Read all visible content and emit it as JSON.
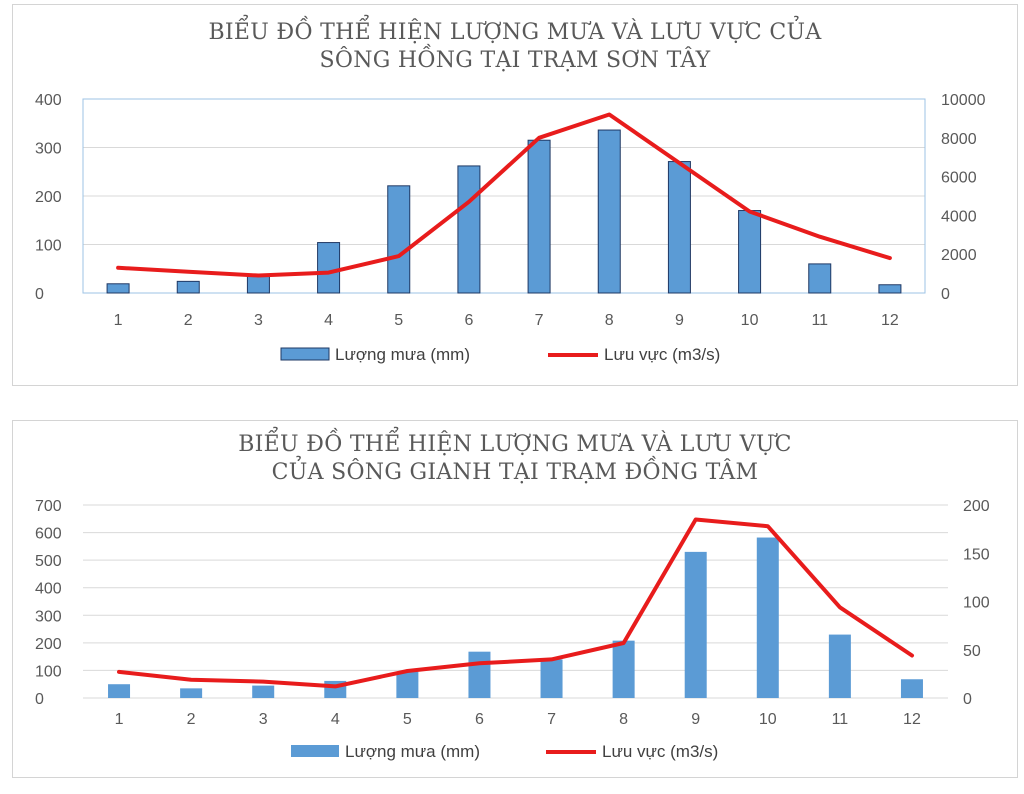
{
  "chart_data": [
    {
      "type": "bar+line",
      "title": [
        "BIỂU ĐỒ THỂ HIỆN LƯỢNG MƯA VÀ LƯU VỰC CỦA",
        "SÔNG HỒNG TẠI TRẠM SƠN TÂY"
      ],
      "categories": [
        "1",
        "2",
        "3",
        "4",
        "5",
        "6",
        "7",
        "8",
        "9",
        "10",
        "11",
        "12"
      ],
      "series": [
        {
          "name": "Lượng mưa (mm)",
          "kind": "bar",
          "axis": "left",
          "color": "#5b9bd5",
          "values": [
            19,
            24,
            37,
            104,
            221,
            262,
            315,
            336,
            271,
            170,
            60,
            17
          ]
        },
        {
          "name": "Lưu vực (m3/s)",
          "kind": "line",
          "axis": "right",
          "color": "#e81c1c",
          "values": [
            1300,
            1100,
            900,
            1050,
            1900,
            4700,
            8000,
            9200,
            6700,
            4200,
            2900,
            1800
          ]
        }
      ],
      "y_left": {
        "min": 0,
        "max": 400,
        "ticks": [
          0,
          100,
          200,
          300,
          400
        ]
      },
      "y_right": {
        "min": 0,
        "max": 10000,
        "ticks": [
          0,
          2000,
          4000,
          6000,
          8000,
          10000
        ]
      },
      "legend": [
        "Lượng mưa (mm)",
        "Lưu vực (m3/s)"
      ]
    },
    {
      "type": "bar+line",
      "title": [
        "BIỂU ĐỒ THỂ HIỆN LƯỢNG MƯA VÀ LƯU VỰC",
        "CỦA SÔNG GIANH TẠI TRẠM ĐỒNG TÂM"
      ],
      "categories": [
        "1",
        "2",
        "3",
        "4",
        "5",
        "6",
        "7",
        "8",
        "9",
        "10",
        "11",
        "12"
      ],
      "series": [
        {
          "name": "Lượng mưa (mm)",
          "kind": "bar",
          "axis": "left",
          "color": "#5b9bd5",
          "values": [
            50,
            35,
            45,
            62,
            95,
            168,
            140,
            208,
            530,
            582,
            230,
            68
          ]
        },
        {
          "name": "Lưu vực (m3/s)",
          "kind": "line",
          "axis": "right",
          "color": "#e81c1c",
          "values": [
            27,
            19,
            17,
            12,
            28,
            36,
            40,
            57,
            185,
            178,
            94,
            44
          ]
        }
      ],
      "y_left": {
        "min": 0,
        "max": 700,
        "ticks": [
          0,
          100,
          200,
          300,
          400,
          500,
          600,
          700
        ]
      },
      "y_right": {
        "min": 0,
        "max": 200,
        "ticks": [
          0,
          50,
          100,
          150,
          200
        ]
      },
      "legend": [
        "Lượng mưa (mm)",
        "Lưu vực (m3/s)"
      ]
    }
  ]
}
